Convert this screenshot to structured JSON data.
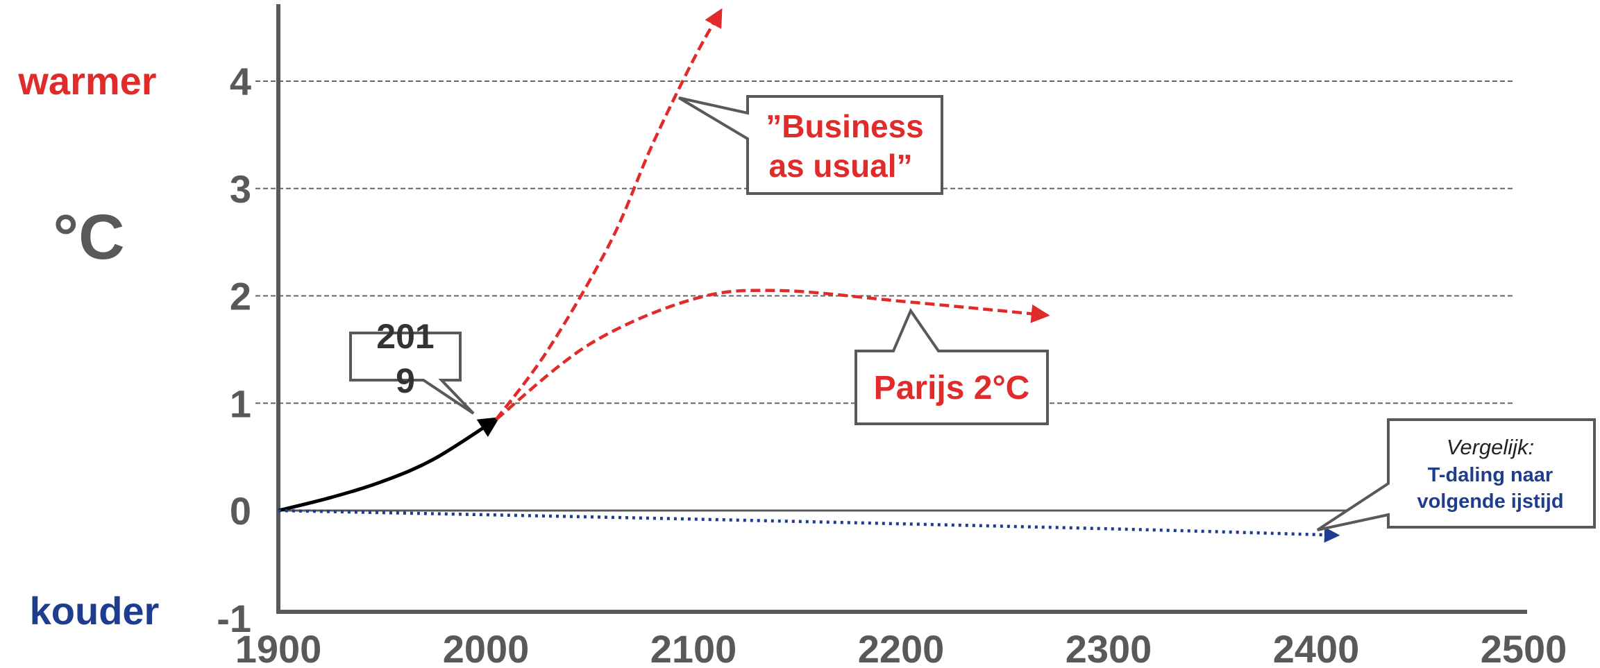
{
  "chart_data": {
    "type": "line",
    "title": "",
    "xlabel": "",
    "ylabel": "°C",
    "xlim": [
      1900,
      2500
    ],
    "ylim": [
      -1,
      4.5
    ],
    "x_ticks": [
      "1900",
      "2000",
      "2100",
      "2200",
      "2300",
      "2400",
      "2500"
    ],
    "y_ticks": [
      "-1",
      "0",
      "1",
      "2",
      "3",
      "4"
    ],
    "grid_values": [
      1,
      2,
      3,
      4
    ],
    "side_labels": {
      "top": "warmer",
      "bottom": "kouder"
    },
    "series": [
      {
        "key": "historical",
        "color": "#000000",
        "style": "solid",
        "points": [
          [
            1900,
            0
          ],
          [
            1925,
            0.12
          ],
          [
            1950,
            0.27
          ],
          [
            1975,
            0.48
          ],
          [
            2005,
            0.85
          ]
        ]
      },
      {
        "key": "business_as_usual",
        "color": "#e02b2b",
        "style": "dashed",
        "points": [
          [
            2005,
            0.85
          ],
          [
            2030,
            1.5
          ],
          [
            2060,
            2.5
          ],
          [
            2080,
            3.4
          ],
          [
            2100,
            4.2
          ],
          [
            2113,
            4.65
          ]
        ]
      },
      {
        "key": "paris",
        "color": "#e02b2b",
        "style": "dashed",
        "points": [
          [
            2005,
            0.85
          ],
          [
            2050,
            1.55
          ],
          [
            2100,
            1.97
          ],
          [
            2140,
            2.05
          ],
          [
            2200,
            1.95
          ],
          [
            2270,
            1.82
          ]
        ]
      },
      {
        "key": "ice_age",
        "color": "#1f3d8f",
        "style": "dotted",
        "points": [
          [
            1900,
            0
          ],
          [
            2100,
            -0.08
          ],
          [
            2300,
            -0.17
          ],
          [
            2410,
            -0.23
          ]
        ]
      }
    ],
    "annotations": [
      {
        "key": "year",
        "lines": [
          "201",
          "9"
        ],
        "color": "#333333",
        "target": [
          2005,
          0.85
        ]
      },
      {
        "key": "bau",
        "lines": [
          "”Business",
          "as usual”"
        ],
        "color": "#e02b2b",
        "target": [
          2097,
          4.15
        ]
      },
      {
        "key": "paris",
        "lines": [
          "Parijs 2°C"
        ],
        "color": "#e02b2b",
        "target": [
          2210,
          1.85
        ]
      },
      {
        "key": "compare",
        "lines": [
          "Vergelijk:",
          "T-daling naar",
          "volgende ijstijd"
        ],
        "colors": [
          "#222222",
          "#1f3d8f",
          "#1f3d8f"
        ],
        "target": [
          2410,
          -0.2
        ]
      }
    ]
  },
  "colors": {
    "axis": "#595959",
    "grid": "#666666",
    "warm": "#e02b2b",
    "cold": "#1f3d8f"
  }
}
